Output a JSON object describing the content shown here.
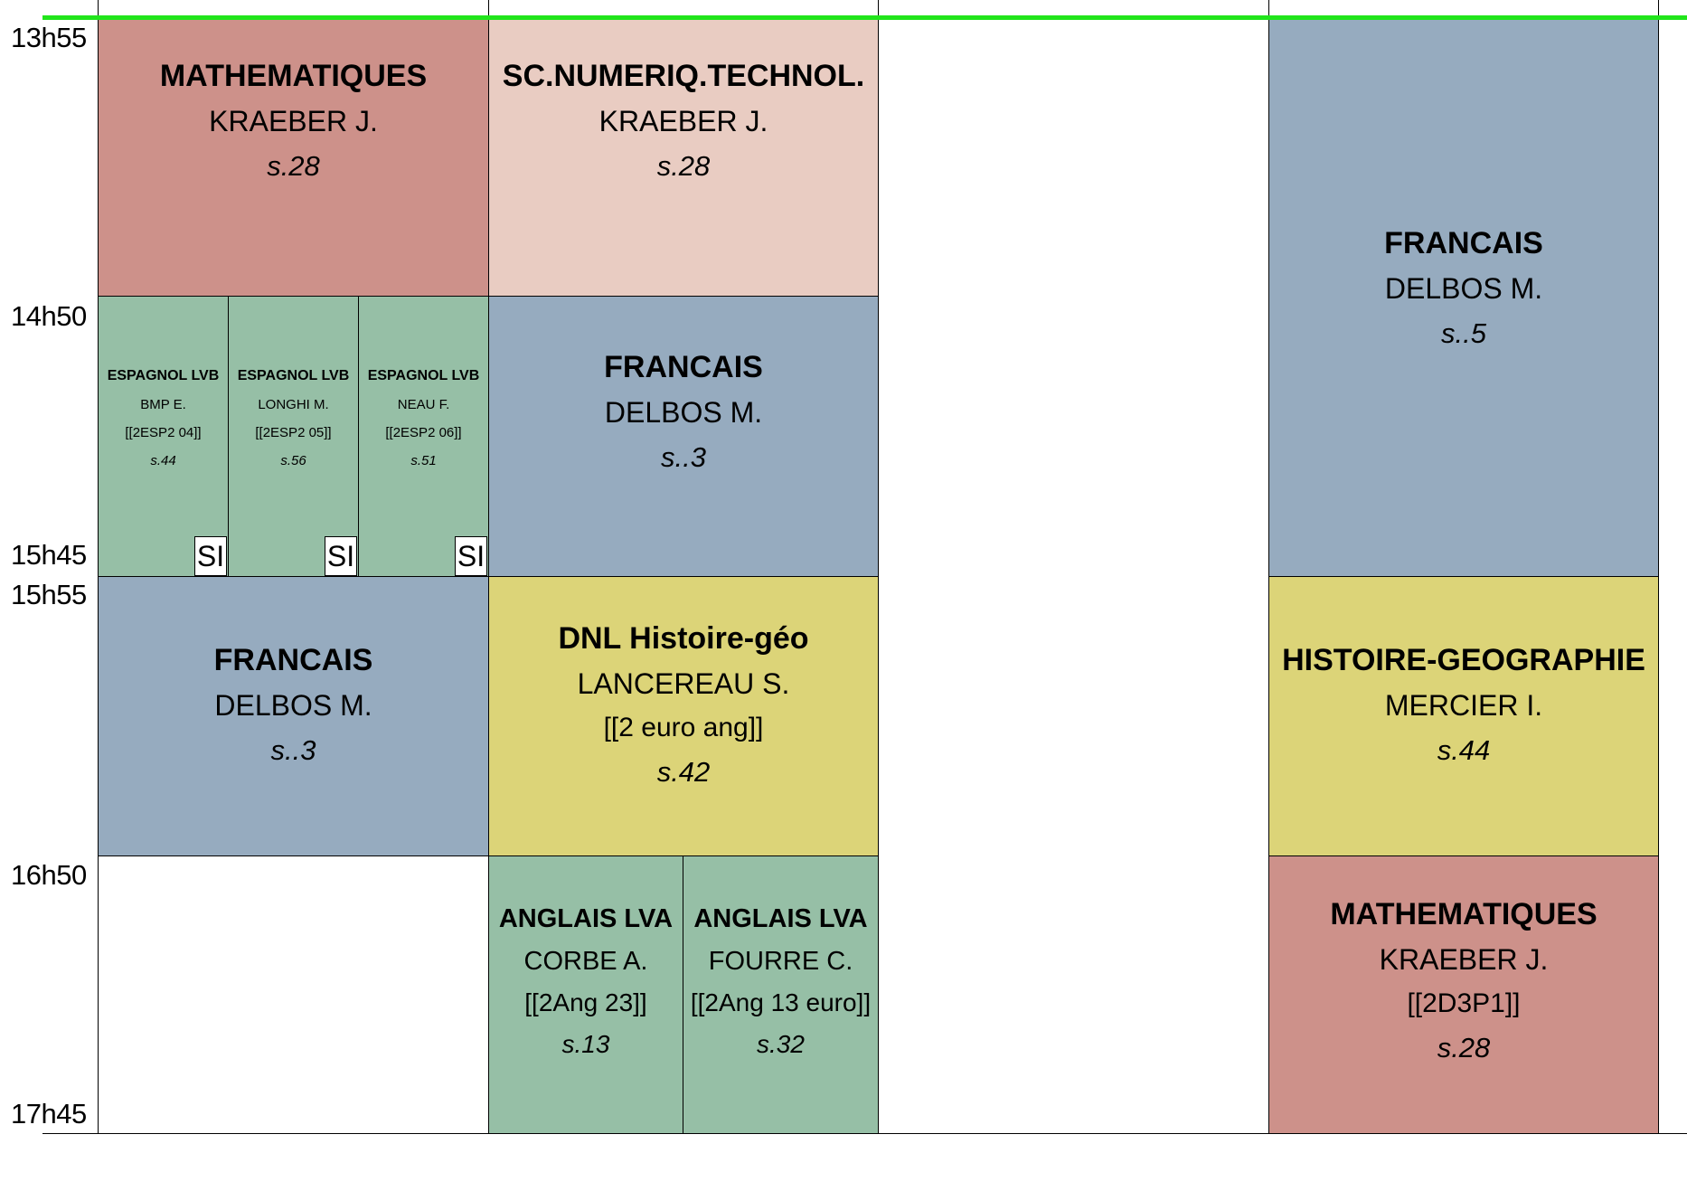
{
  "colors": {
    "current_time_line": "#21e51b",
    "mathematiques": "#cd918a",
    "sc_numeriq": "#e9ccc2",
    "francais": "#96abbf",
    "espagnol_anglais": "#96bfa6",
    "histoire_geo": "#dcd478"
  },
  "times": [
    "13h55",
    "14h50",
    "15h45",
    "15h55",
    "16h50",
    "17h45"
  ],
  "courses": [
    {
      "subject": "MATHEMATIQUES",
      "teacher": "KRAEBER J.",
      "room": "s.28"
    },
    {
      "subject": "SC.NUMERIQ.TECHNOL.",
      "teacher": "KRAEBER J.",
      "room": "s.28"
    },
    {
      "subject": "FRANCAIS",
      "teacher": "DELBOS M.",
      "room": "s..5"
    },
    {
      "subject": "ESPAGNOL LVB",
      "teacher": "BMP E.",
      "group": "[[2ESP2 04]]",
      "room": "s.44",
      "badge": "SI"
    },
    {
      "subject": "ESPAGNOL LVB",
      "teacher": "LONGHI M.",
      "group": "[[2ESP2 05]]",
      "room": "s.56",
      "badge": "SI"
    },
    {
      "subject": "ESPAGNOL LVB",
      "teacher": "NEAU F.",
      "group": "[[2ESP2 06]]",
      "room": "s.51",
      "badge": "SI"
    },
    {
      "subject": "FRANCAIS",
      "teacher": "DELBOS M.",
      "room": "s..3"
    },
    {
      "subject": "FRANCAIS",
      "teacher": "DELBOS M.",
      "room": "s..3"
    },
    {
      "subject": "DNL Histoire-géo",
      "teacher": "LANCEREAU S.",
      "group": "[[2 euro ang]]",
      "room": "s.42"
    },
    {
      "subject": "HISTOIRE-GEOGRAPHIE",
      "teacher": "MERCIER I.",
      "room": "s.44"
    },
    {
      "subject": "ANGLAIS LVA",
      "teacher": "CORBE A.",
      "group": "[[2Ang 23]]",
      "room": "s.13"
    },
    {
      "subject": "ANGLAIS LVA",
      "teacher": "FOURRE C.",
      "group": "[[2Ang 13 euro]]",
      "room": "s.32"
    },
    {
      "subject": "MATHEMATIQUES",
      "teacher": "KRAEBER J.",
      "group": "[[2D3P1]]",
      "room": "s.28"
    }
  ]
}
